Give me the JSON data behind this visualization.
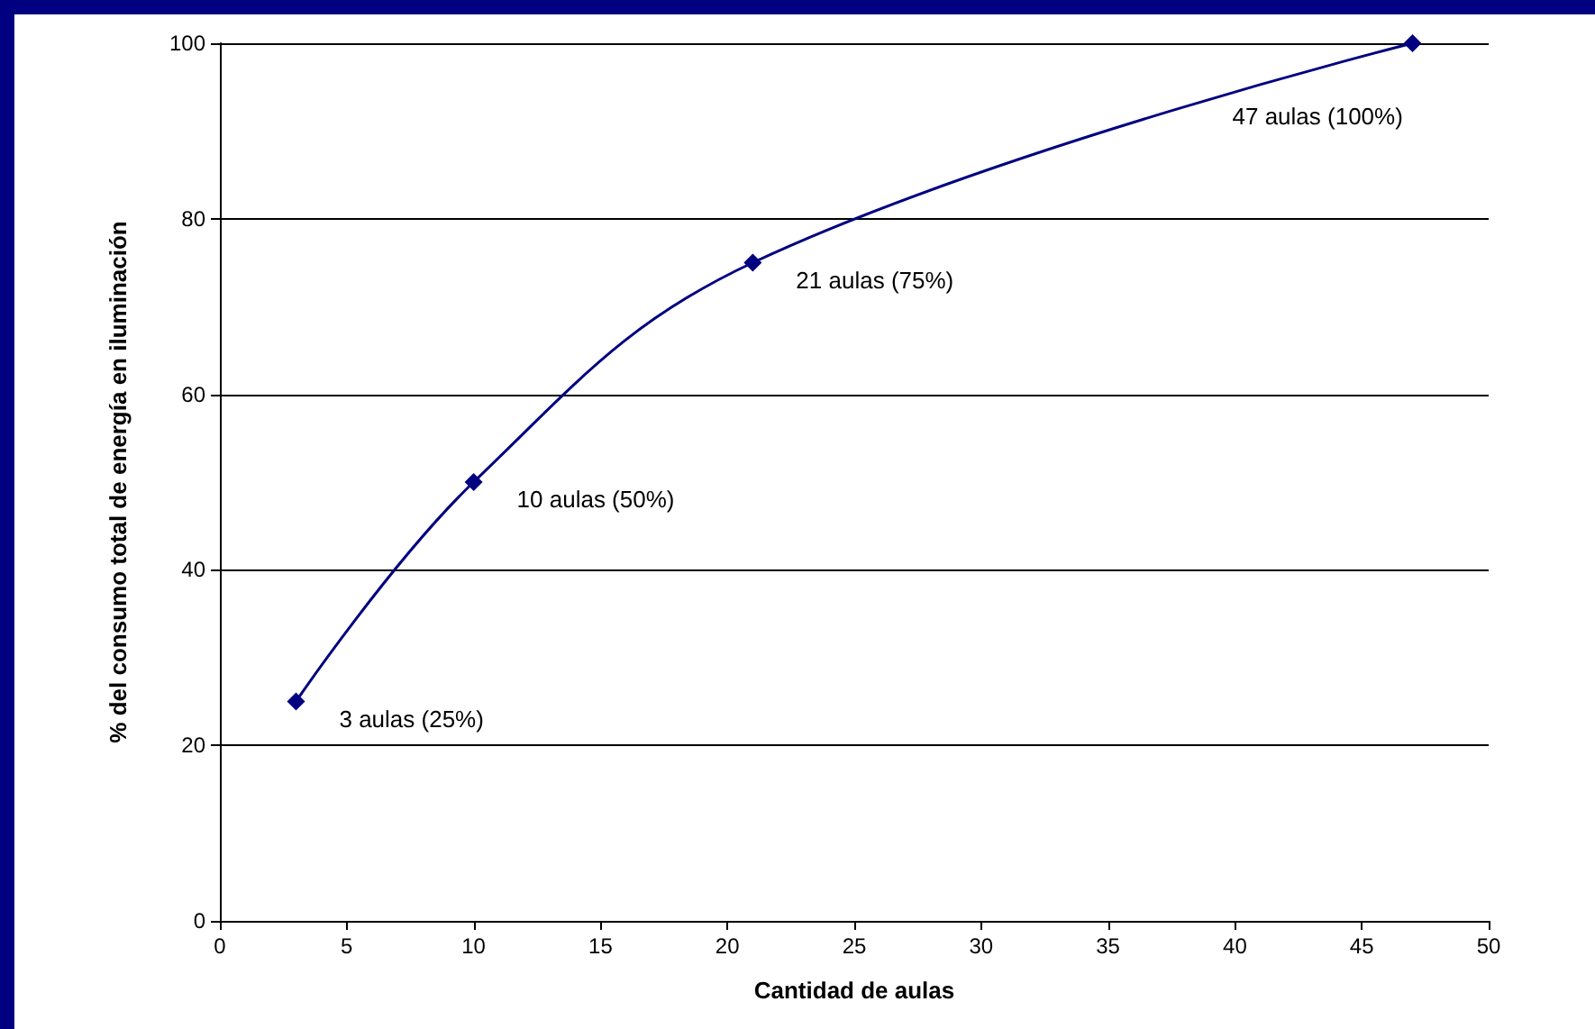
{
  "chart_data": {
    "type": "line",
    "xlabel": "Cantidad de aulas",
    "ylabel": "% del consumo total de energía en iluminación",
    "x": [
      3,
      10,
      21,
      47
    ],
    "series": [
      {
        "color": "#000080",
        "values": [
          25,
          50,
          75,
          100
        ]
      }
    ],
    "xlim": [
      0,
      50
    ],
    "xticks": [
      0,
      5,
      10,
      15,
      20,
      25,
      30,
      35,
      40,
      45,
      50
    ],
    "ylim": [
      0,
      100
    ],
    "yticks": [
      0,
      20,
      40,
      60,
      80,
      100
    ],
    "grid": "y",
    "marker": "diamond",
    "line_style": "solid",
    "annotations": [
      {
        "text": "3 aulas (25%)",
        "x": 3,
        "y": 25
      },
      {
        "text": "10 aulas (50%)",
        "x": 10,
        "y": 50
      },
      {
        "text": "21 aulas (75%)",
        "x": 21,
        "y": 75
      },
      {
        "text": "47 aulas (100%)",
        "x": 47,
        "y": 100
      }
    ]
  }
}
